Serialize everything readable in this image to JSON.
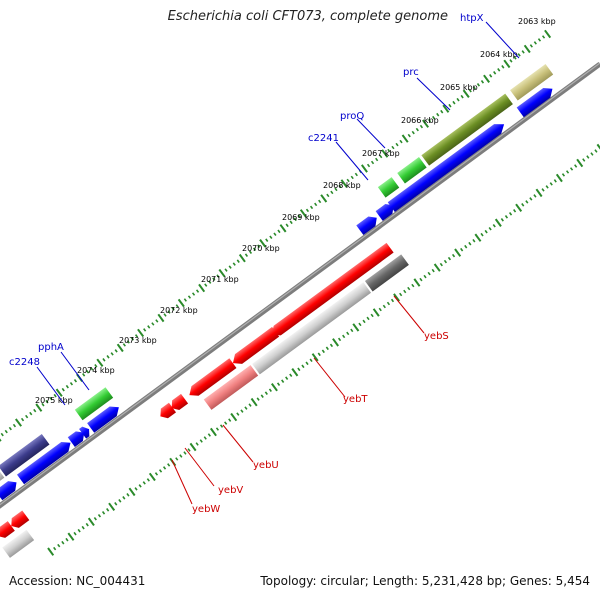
{
  "title": "Escherichia coli CFT073, complete genome",
  "footer": {
    "accession": "Accession: NC_004431",
    "summary": "Topology: circular; Length: 5,231,428 bp; Genes: 5,454"
  },
  "scale_labels": [
    "2063 kbp",
    "2064 kbp",
    "2065 kbp",
    "2066 kbp",
    "2067 kbp",
    "2068 kbp",
    "2069 kbp",
    "2070 kbp",
    "2071 kbp",
    "2072 kbp",
    "2073 kbp",
    "2074 kbp",
    "2075 kbp"
  ],
  "forward_gene_labels": [
    "htpX",
    "prc",
    "proQ",
    "c2241",
    "pphA",
    "c2248"
  ],
  "reverse_gene_labels": [
    "yebS",
    "yebT",
    "yebU",
    "yebV",
    "yebW"
  ],
  "colors": {
    "forward_label": "#0000cc",
    "reverse_label": "#cc0000",
    "cds_forward": "#0000ff",
    "cds_reverse": "#ff0000",
    "tick": "#2a8a2a",
    "backbone": "#808080"
  }
}
